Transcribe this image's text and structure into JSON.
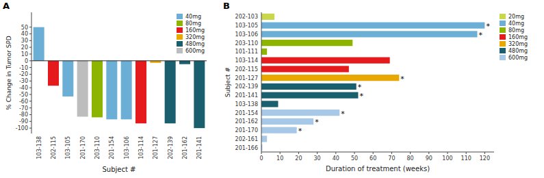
{
  "chart_data": [
    {
      "type": "bar",
      "title": "A",
      "xlabel": "Subject #",
      "ylabel": "% Change in Tumor SPD",
      "categories": [
        "103-138",
        "202-115",
        "103-105",
        "201-170",
        "203-110",
        "201-154",
        "103-106",
        "103-114",
        "201-127",
        "202-139",
        "201-162",
        "201-141"
      ],
      "series": [
        {
          "name": "40mg",
          "color": "#6baed6",
          "values": [
            50,
            null,
            -53,
            null,
            null,
            -87,
            -87,
            null,
            null,
            null,
            null,
            null
          ]
        },
        {
          "name": "80mg",
          "color": "#8db500",
          "values": [
            null,
            null,
            null,
            null,
            -84,
            null,
            null,
            null,
            null,
            null,
            null,
            null
          ]
        },
        {
          "name": "160mg",
          "color": "#e41a1c",
          "values": [
            null,
            -37,
            null,
            null,
            null,
            null,
            null,
            -93,
            null,
            null,
            null,
            null
          ]
        },
        {
          "name": "320mg",
          "color": "#e8a800",
          "values": [
            null,
            null,
            null,
            null,
            null,
            null,
            null,
            null,
            -3,
            null,
            null,
            null
          ]
        },
        {
          "name": "480mg",
          "color": "#1a5f6e",
          "values": [
            null,
            null,
            null,
            null,
            null,
            null,
            null,
            null,
            null,
            -93,
            -5,
            -100
          ]
        },
        {
          "name": "600mg",
          "color": "#bdbdbd",
          "values": [
            null,
            null,
            null,
            -83,
            null,
            null,
            null,
            null,
            null,
            null,
            null,
            null
          ]
        }
      ],
      "stacked": true,
      "ylim": [
        -108,
        72
      ],
      "yticks": [
        -100,
        -90,
        -80,
        -70,
        -60,
        -50,
        -40,
        -30,
        -20,
        -10,
        0,
        10,
        20,
        30,
        40,
        50
      ],
      "grid": false,
      "legend": "upper right"
    },
    {
      "type": "bar",
      "orientation": "horizontal",
      "title": "B",
      "xlabel": "Duration of treatment (weeks)",
      "ylabel": "Subject #",
      "categories": [
        "202-103",
        "103-105",
        "103-106",
        "203-110",
        "101-111",
        "103-114",
        "202-115",
        "201-127",
        "202-139",
        "201-141",
        "103-138",
        "201-154",
        "201-162",
        "201-170",
        "202-161",
        "201-166"
      ],
      "series": [
        {
          "name": "20mg",
          "color": "#c8d848",
          "values": [
            7,
            null,
            null,
            null,
            null,
            null,
            null,
            null,
            null,
            null,
            null,
            null,
            null,
            null,
            null,
            null
          ]
        },
        {
          "name": "40mg",
          "color": "#6baed6",
          "values": [
            null,
            120,
            116,
            null,
            null,
            null,
            null,
            null,
            null,
            null,
            null,
            null,
            null,
            null,
            null,
            null
          ]
        },
        {
          "name": "80mg",
          "color": "#8db500",
          "values": [
            null,
            null,
            null,
            49,
            3,
            null,
            null,
            null,
            null,
            null,
            null,
            null,
            null,
            null,
            null,
            null
          ]
        },
        {
          "name": "160mg",
          "color": "#e41a1c",
          "values": [
            null,
            null,
            null,
            null,
            null,
            69,
            47,
            null,
            null,
            null,
            null,
            null,
            null,
            null,
            null,
            null
          ]
        },
        {
          "name": "320mg",
          "color": "#e8a800",
          "values": [
            null,
            null,
            null,
            null,
            null,
            null,
            null,
            74,
            null,
            null,
            null,
            null,
            null,
            null,
            null,
            null
          ]
        },
        {
          "name": "480mg",
          "color": "#1a5f6e",
          "values": [
            null,
            null,
            null,
            null,
            null,
            null,
            null,
            null,
            51,
            52,
            9,
            null,
            null,
            null,
            null,
            null
          ]
        },
        {
          "name": "600mg",
          "color": "#a8c8e8",
          "values": [
            null,
            null,
            null,
            null,
            null,
            null,
            null,
            null,
            null,
            null,
            null,
            42,
            28,
            19,
            3,
            0.5
          ]
        }
      ],
      "stacked": true,
      "xlim": [
        0,
        125
      ],
      "xticks": [
        0,
        10,
        20,
        30,
        40,
        50,
        60,
        70,
        80,
        90,
        100,
        110,
        120
      ],
      "annotations": [
        {
          "category": "103-105",
          "text": "*"
        },
        {
          "category": "103-106",
          "text": "*"
        },
        {
          "category": "201-127",
          "text": "*"
        },
        {
          "category": "202-139",
          "text": "*"
        },
        {
          "category": "201-141",
          "text": "*"
        },
        {
          "category": "201-154",
          "text": "*"
        },
        {
          "category": "201-162",
          "text": "*"
        },
        {
          "category": "201-170",
          "text": "*"
        }
      ],
      "grid": false,
      "legend": "right"
    }
  ]
}
